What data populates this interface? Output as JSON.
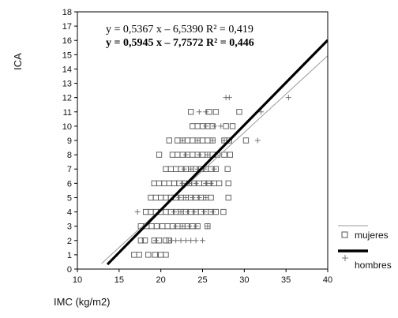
{
  "chart_data": {
    "type": "scatter",
    "xlabel": "IMC (kg/m2)",
    "ylabel": "ICA",
    "xlim": [
      10,
      40
    ],
    "ylim": [
      0,
      18
    ],
    "xticks": [
      10,
      15,
      20,
      25,
      30,
      35,
      40
    ],
    "yticks": [
      0,
      1,
      2,
      3,
      4,
      5,
      6,
      7,
      8,
      9,
      10,
      11,
      12,
      13,
      14,
      15,
      16,
      17,
      18
    ],
    "grid": false,
    "legend_position": "bottom-right, outside plot",
    "equations": [
      "y = 0,5367 x – 6,5390 R² = 0,419",
      "y = 0,5945 x – 7,7572 R² = 0,446"
    ],
    "fit_lines": [
      {
        "slope": 0.5367,
        "intercept": -6.539,
        "x_start": 12.9,
        "x_end": 40,
        "color": "#9a9a9a",
        "style": "thin"
      },
      {
        "slope": 0.5945,
        "intercept": -7.7572,
        "x_start": 13.6,
        "x_end": 40,
        "color": "#000000",
        "style": "thick"
      }
    ],
    "series": [
      {
        "name": "mujeres",
        "marker": "square",
        "rows": [
          {
            "y": 1,
            "xs": [
              16.8,
              17.4,
              18.5,
              19.3,
              20.0,
              20.6
            ]
          },
          {
            "y": 2,
            "xs": [
              17.6,
              18.1,
              19.2,
              19.8,
              20.6,
              21.0
            ]
          },
          {
            "y": 3,
            "xs": [
              17.6,
              18.3,
              18.9,
              19.5,
              20.2,
              20.8,
              21.4,
              22.0,
              22.6,
              23.2,
              23.8,
              24.4,
              25.6
            ]
          },
          {
            "y": 4,
            "xs": [
              18.2,
              18.8,
              19.4,
              20.0,
              20.6,
              21.2,
              21.8,
              22.4,
              23.0,
              23.6,
              24.2,
              24.8,
              25.4,
              26.0,
              26.6,
              27.5
            ]
          },
          {
            "y": 5,
            "xs": [
              18.8,
              19.4,
              20.0,
              20.6,
              21.2,
              21.8,
              22.4,
              23.0,
              23.6,
              24.2,
              24.8,
              25.4,
              26.0,
              28.1
            ]
          },
          {
            "y": 6,
            "xs": [
              19.2,
              19.8,
              20.4,
              21.0,
              21.6,
              22.2,
              22.8,
              23.4,
              24.0,
              24.6,
              25.2,
              25.8,
              26.4,
              27.0,
              28.1
            ]
          },
          {
            "y": 7,
            "xs": [
              20.6,
              21.2,
              21.8,
              22.4,
              23.0,
              23.6,
              24.2,
              24.8,
              25.4,
              26.0,
              26.6,
              28.0
            ]
          },
          {
            "y": 8,
            "xs": [
              19.8,
              21.4,
              22.0,
              22.6,
              23.2,
              23.8,
              24.4,
              25.0,
              25.6,
              26.2,
              26.8,
              27.6,
              28.3
            ]
          },
          {
            "y": 9,
            "xs": [
              21.0,
              22.0,
              22.6,
              23.2,
              23.8,
              24.4,
              25.0,
              25.6,
              26.2,
              27.6,
              28.2,
              30.2
            ]
          },
          {
            "y": 10,
            "xs": [
              23.8,
              24.4,
              25.0,
              25.6,
              26.2,
              27.8,
              28.6
            ]
          },
          {
            "y": 11,
            "xs": [
              23.6,
              25.8,
              26.6,
              29.4
            ]
          }
        ]
      },
      {
        "name": "hombres",
        "marker": "plus",
        "rows": [
          {
            "y": 2,
            "xs": [
              19.4,
              21.2,
              21.8,
              22.4,
              23.0,
              23.6,
              24.2,
              25.0
            ]
          },
          {
            "y": 3,
            "xs": [
              21.8,
              22.6,
              23.4,
              24.2,
              25.6
            ]
          },
          {
            "y": 4,
            "xs": [
              17.2,
              21.6,
              22.4,
              23.2,
              24.0,
              25.2,
              26.2
            ]
          },
          {
            "y": 5,
            "xs": [
              22.2,
              23.0,
              23.8,
              24.6,
              25.4
            ]
          },
          {
            "y": 6,
            "xs": [
              22.6,
              23.4,
              24.2,
              25.4,
              26.0
            ]
          },
          {
            "y": 7,
            "xs": [
              22.8,
              23.6,
              24.4,
              25.2,
              26.4
            ]
          },
          {
            "y": 8,
            "xs": [
              23.0,
              24.6,
              25.6,
              26.6
            ]
          },
          {
            "y": 9,
            "xs": [
              22.6,
              24.4,
              26.2,
              27.6,
              31.6
            ]
          },
          {
            "y": 10,
            "xs": [
              25.4,
              26.4,
              27.2
            ]
          },
          {
            "y": 11,
            "xs": [
              24.6,
              25.4,
              32.0
            ]
          },
          {
            "y": 12,
            "xs": [
              27.8,
              28.2,
              35.3
            ]
          }
        ]
      }
    ],
    "legend": [
      {
        "label": "",
        "symbol": "thin-line"
      },
      {
        "label": "mujeres",
        "symbol": "square"
      },
      {
        "label": "",
        "symbol": "thick-line"
      },
      {
        "label": "hombres",
        "symbol": "plus"
      }
    ]
  }
}
